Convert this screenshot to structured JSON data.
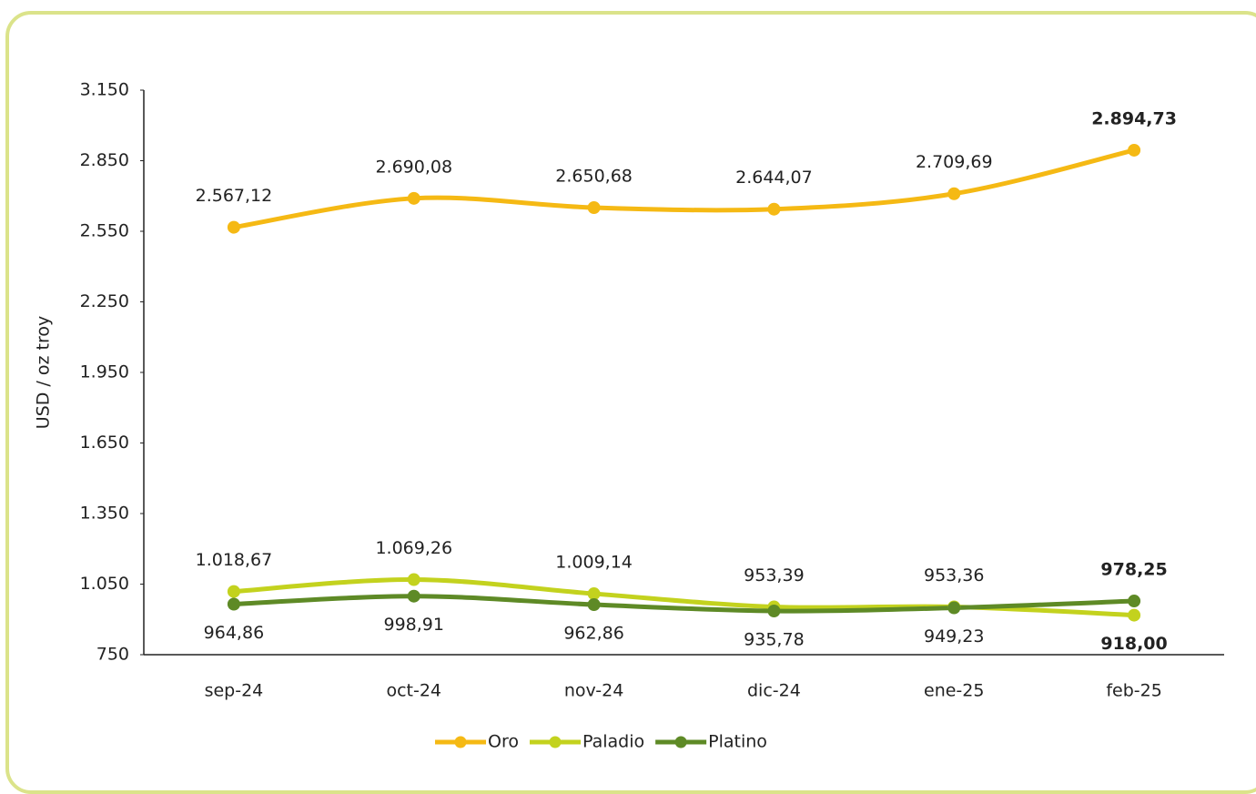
{
  "chart_data": {
    "type": "line",
    "y_label": "USD / oz troy",
    "categories": [
      "sep-24",
      "oct-24",
      "nov-24",
      "dic-24",
      "ene-25",
      "feb-25"
    ],
    "series": [
      {
        "name": "Oro",
        "color": "#f5b914",
        "values": [
          2567.12,
          2690.08,
          2650.68,
          2644.07,
          2709.69,
          2894.73
        ],
        "value_labels": [
          "2.567,12",
          "2.690,08",
          "2.650,68",
          "2.644,07",
          "2.709,69",
          "2.894,73"
        ]
      },
      {
        "name": "Paladio",
        "color": "#c3d21e",
        "values": [
          1018.67,
          1069.26,
          1009.14,
          953.39,
          953.36,
          918.0
        ],
        "value_labels": [
          "1.018,67",
          "1.069,26",
          "1.009,14",
          "953,39",
          "953,36",
          "918,00"
        ]
      },
      {
        "name": "Platino",
        "color": "#5e8a26",
        "values": [
          964.86,
          998.91,
          962.86,
          935.78,
          949.23,
          978.25
        ],
        "value_labels": [
          "964,86",
          "998,91",
          "962,86",
          "935,78",
          "949,23",
          "978,25"
        ]
      }
    ],
    "ylim": [
      750,
      3150
    ],
    "yticks": [
      750,
      {
        "value": 1050,
        "label": "1.050"
      },
      {
        "value": 1350,
        "label": "1.350"
      },
      {
        "value": 1650,
        "label": "1.650"
      },
      {
        "value": 1950,
        "label": "1.950"
      },
      {
        "value": 2250,
        "label": "2.250"
      },
      {
        "value": 2550,
        "label": "2.550"
      },
      {
        "value": 2850,
        "label": "2.850"
      },
      {
        "value": 3150,
        "label": "3.150"
      }
    ],
    "grid": false,
    "legend": "bottom"
  }
}
